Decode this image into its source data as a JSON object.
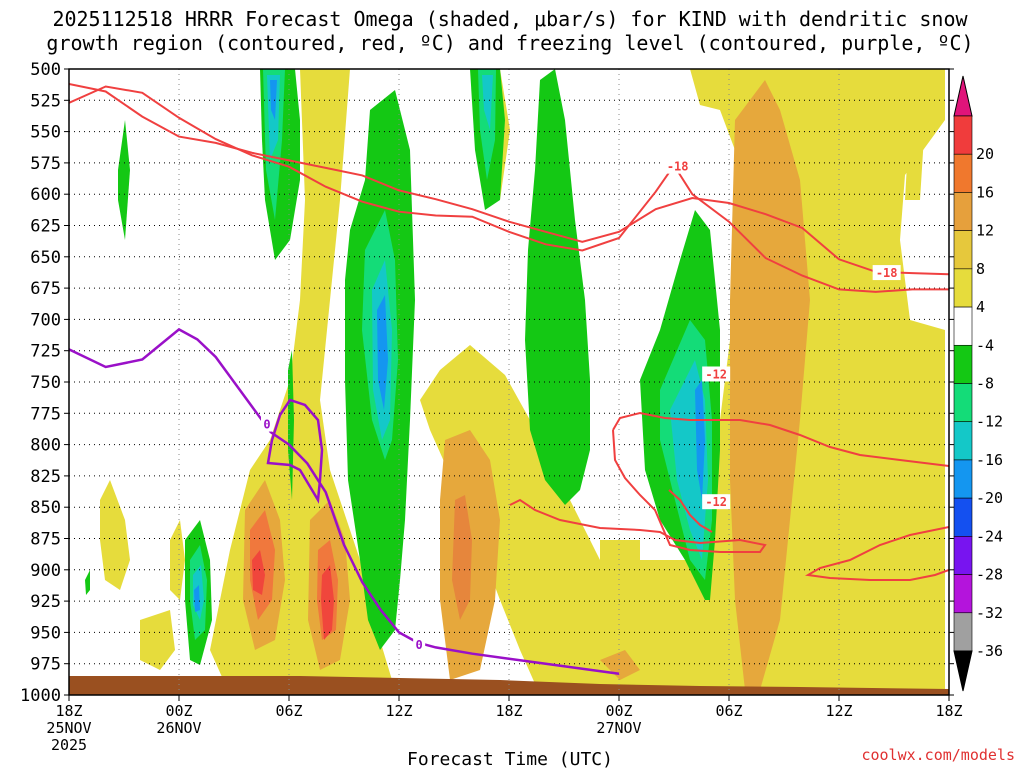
{
  "chart_data": {
    "type": "heatmap",
    "title_line1": "2025112518 HRRR Forecast Omega (shaded, μbar/s) for KIND with dendritic snow",
    "title_line2": "growth region (contoured, red, ºC) and freezing level (contoured, purple, ºC)",
    "xlabel": "Forecast Time (UTC)",
    "ylabel": "",
    "credit": "coolwx.com/models",
    "y_axis": {
      "unit": "hPa",
      "reversed": true,
      "range": [
        500,
        1000
      ],
      "ticks": [
        500,
        525,
        550,
        575,
        600,
        625,
        650,
        675,
        700,
        725,
        750,
        775,
        800,
        825,
        850,
        875,
        900,
        925,
        950,
        975,
        1000
      ]
    },
    "x_axis": {
      "unit": "hours since 25NOV 18Z",
      "range": [
        0,
        48
      ],
      "ticks": [
        {
          "hour": 0,
          "lines": [
            "18Z",
            "25NOV",
            "2025"
          ]
        },
        {
          "hour": 6,
          "lines": [
            "00Z",
            "26NOV"
          ]
        },
        {
          "hour": 12,
          "lines": [
            "06Z"
          ]
        },
        {
          "hour": 18,
          "lines": [
            "12Z"
          ]
        },
        {
          "hour": 24,
          "lines": [
            "18Z"
          ]
        },
        {
          "hour": 30,
          "lines": [
            "00Z",
            "27NOV"
          ]
        },
        {
          "hour": 36,
          "lines": [
            "06Z"
          ]
        },
        {
          "hour": 42,
          "lines": [
            "12Z"
          ]
        },
        {
          "hour": 48,
          "lines": [
            "18Z"
          ]
        }
      ]
    },
    "colorbar": {
      "ticks": [
        "20",
        "16",
        "12",
        "8",
        "4",
        "-4",
        "-8",
        "-12",
        "-16",
        "-20",
        "-24",
        "-28",
        "-32",
        "-36"
      ],
      "colors": [
        "#e0147a",
        "#f03c3c",
        "#f0782d",
        "#e6a03c",
        "#e6c83c",
        "#e6dc3c",
        "#ffffff",
        "#14c814",
        "#14dc78",
        "#14c8c8",
        "#1496f0",
        "#1450f0",
        "#7814f0",
        "#b414dc",
        "#a0a0a0",
        "#000000"
      ]
    },
    "omega_levels": [
      {
        "range": "4 to 8",
        "color": "#e6dc3c"
      },
      {
        "range": "8 to 12",
        "color": "#e6b43c"
      },
      {
        "range": "12 to 16",
        "color": "#e6963c"
      },
      {
        "range": "16 to 20",
        "color": "#f0502d"
      },
      {
        "range": "-4 to -8",
        "color": "#14c814"
      },
      {
        "range": "-8 to -12",
        "color": "#14dc78"
      },
      {
        "range": "-12 to -16",
        "color": "#14c8c8"
      },
      {
        "range": "-16 to -20",
        "color": "#1496f0"
      }
    ],
    "colors": {
      "dgz_contour": "#f04040",
      "freezing_contour": "#9a10c8",
      "terrain": "#9a5020"
    },
    "contour_labels": [
      {
        "text": "-18",
        "kind": "dgz",
        "hour": 33.2,
        "p": 578
      },
      {
        "text": "-18",
        "kind": "dgz",
        "hour": 44.6,
        "p": 663
      },
      {
        "text": "-12",
        "kind": "dgz",
        "hour": 35.3,
        "p": 744
      },
      {
        "text": "-12",
        "kind": "dgz",
        "hour": 35.3,
        "p": 846
      },
      {
        "text": "0",
        "kind": "freezing",
        "hour": 10.8,
        "p": 784
      },
      {
        "text": "0",
        "kind": "freezing",
        "hour": 19.1,
        "p": 960
      }
    ],
    "dgz_upper": [
      [
        0,
        527
      ],
      [
        2,
        514
      ],
      [
        4,
        519
      ],
      [
        6,
        539
      ],
      [
        8,
        556
      ],
      [
        10,
        569
      ],
      [
        12,
        578
      ],
      [
        14,
        594
      ],
      [
        16,
        606
      ],
      [
        18,
        614
      ],
      [
        20,
        617
      ],
      [
        22,
        618
      ],
      [
        24,
        630
      ],
      [
        26,
        640
      ],
      [
        28,
        645
      ],
      [
        30,
        635
      ],
      [
        32,
        598
      ],
      [
        33,
        577
      ],
      [
        34,
        600
      ],
      [
        36,
        622
      ],
      [
        38,
        651
      ],
      [
        40,
        665
      ],
      [
        42,
        676
      ],
      [
        44,
        678
      ],
      [
        46,
        676
      ],
      [
        48,
        676
      ]
    ],
    "dgz_lower": [
      [
        0,
        512
      ],
      [
        2,
        518
      ],
      [
        4,
        538
      ],
      [
        6,
        554
      ],
      [
        8,
        559
      ],
      [
        10,
        567
      ],
      [
        12,
        573
      ],
      [
        14,
        579
      ],
      [
        16,
        585
      ],
      [
        18,
        597
      ],
      [
        20,
        604
      ],
      [
        22,
        612
      ],
      [
        24,
        622
      ],
      [
        26,
        630
      ],
      [
        28,
        638
      ],
      [
        30,
        630
      ],
      [
        32,
        612
      ],
      [
        34,
        603
      ],
      [
        36,
        607
      ],
      [
        38,
        616
      ],
      [
        40,
        627
      ],
      [
        42,
        652
      ],
      [
        44,
        662
      ],
      [
        46,
        663
      ],
      [
        48,
        664
      ]
    ],
    "freezing_level": [
      [
        0,
        724
      ],
      [
        2,
        738
      ],
      [
        4,
        732
      ],
      [
        5,
        720
      ],
      [
        6,
        708
      ],
      [
        7,
        716
      ],
      [
        8,
        730
      ],
      [
        9,
        750
      ],
      [
        10,
        770
      ],
      [
        11,
        790
      ],
      [
        12,
        800
      ],
      [
        13,
        815
      ],
      [
        14,
        838
      ],
      [
        15,
        880
      ],
      [
        16,
        910
      ],
      [
        17,
        932
      ],
      [
        18,
        950
      ],
      [
        19,
        958
      ],
      [
        20,
        962
      ],
      [
        22,
        967
      ],
      [
        24,
        971
      ],
      [
        26,
        975
      ],
      [
        28,
        979
      ],
      [
        30,
        983
      ]
    ]
  }
}
